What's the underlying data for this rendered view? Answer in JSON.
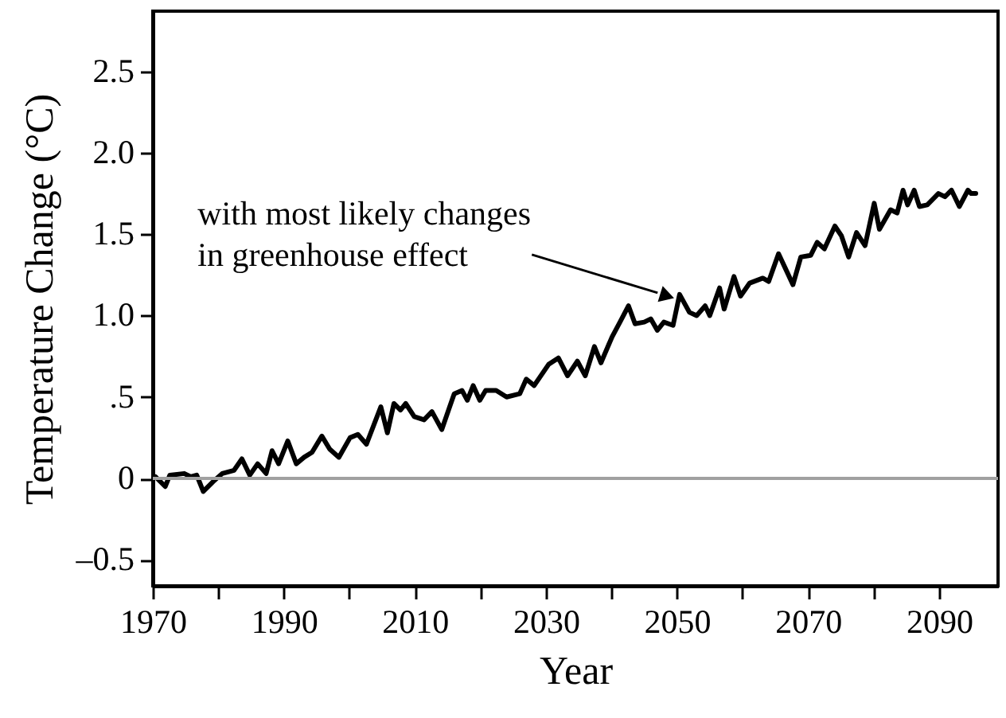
{
  "chart_data": {
    "type": "line",
    "xlabel": "Year",
    "ylabel": "Temperature Change (°C)",
    "xlim": [
      1970,
      2099
    ],
    "ylim": [
      -0.66,
      2.87
    ],
    "xticks": [
      1970,
      {
        "value": 1980,
        "label": null
      },
      1990,
      {
        "value": 2000,
        "label": null
      },
      2010,
      {
        "value": 2020,
        "label": null
      },
      2030,
      {
        "value": 2040,
        "label": null
      },
      2050,
      {
        "value": 2060,
        "label": null
      },
      2070,
      {
        "value": 2080,
        "label": null
      },
      2090
    ],
    "yticks": [
      {
        "value": -0.5,
        "label": "–0.5"
      },
      0,
      {
        "value": 0.5,
        "label": ".5"
      },
      {
        "value": 1,
        "label": "1.0"
      },
      1.5,
      {
        "value": 2,
        "label": "2.0"
      },
      2.5
    ],
    "grid": false,
    "ref_lines": [
      {
        "axis": "y",
        "value": 0,
        "color": "#a0a0a0"
      }
    ],
    "annotations": [
      {
        "text": "with most likely changes\nin greenhouse effect",
        "x": 2048.5,
        "y": 1.12
      }
    ],
    "series": [
      {
        "color": "#000000",
        "line_style": "solid",
        "x": [
          1970.4,
          1971.9,
          1972.6,
          1974.8,
          1975.8,
          1976.7,
          1977.7,
          1979.2,
          1980.6,
          1982.4,
          1983.6,
          1984.8,
          1986,
          1987.3,
          1988.2,
          1989.2,
          1990.6,
          1991.9,
          1993.1,
          1994.3,
          1995.8,
          1997,
          1998.4,
          2000.1,
          2001.3,
          2002.6,
          2004.8,
          2005.8,
          2006.8,
          2007.8,
          2008.6,
          2009.9,
          2011.4,
          2012.6,
          2014.1,
          2016,
          2017.2,
          2018,
          2018.9,
          2019.9,
          2020.8,
          2022.4,
          2024,
          2026,
          2027,
          2028.2,
          2030.4,
          2031.9,
          2033.3,
          2034.8,
          2036,
          2037.4,
          2038.4,
          2040.1,
          2041.3,
          2042.6,
          2043.6,
          2045,
          2046,
          2047,
          2048,
          2049.4,
          2050.4,
          2051.9,
          2053,
          2054.3,
          2055,
          2056.5,
          2057.2,
          2058.7,
          2059.7,
          2061.1,
          2063.1,
          2064,
          2065.5,
          2067.7,
          2068.9,
          2070.4,
          2071.4,
          2072.5,
          2074.1,
          2075.1,
          2076.2,
          2077.4,
          2078.7,
          2080.1,
          2080.9,
          2082.6,
          2083.6,
          2084.5,
          2085.2,
          2086.2,
          2087,
          2088.2,
          2089.9,
          2090.9,
          2091.9,
          2093.1,
          2094.4,
          2094.9,
          2095.6
        ],
        "values": [
          0.01,
          -0.05,
          0.02,
          0.03,
          0.01,
          0.02,
          -0.08,
          -0.02,
          0.03,
          0.05,
          0.12,
          0.02,
          0.09,
          0.03,
          0.17,
          0.09,
          0.23,
          0.09,
          0.13,
          0.16,
          0.26,
          0.18,
          0.13,
          0.25,
          0.27,
          0.21,
          0.44,
          0.28,
          0.46,
          0.42,
          0.46,
          0.38,
          0.36,
          0.41,
          0.3,
          0.52,
          0.54,
          0.48,
          0.57,
          0.48,
          0.54,
          0.54,
          0.5,
          0.52,
          0.61,
          0.57,
          0.7,
          0.74,
          0.63,
          0.72,
          0.63,
          0.81,
          0.71,
          0.87,
          0.96,
          1.06,
          0.95,
          0.96,
          0.98,
          0.91,
          0.96,
          0.94,
          1.13,
          1.02,
          1.0,
          1.06,
          1.0,
          1.17,
          1.04,
          1.24,
          1.12,
          1.2,
          1.23,
          1.21,
          1.38,
          1.19,
          1.36,
          1.37,
          1.45,
          1.41,
          1.55,
          1.49,
          1.36,
          1.51,
          1.43,
          1.69,
          1.53,
          1.65,
          1.63,
          1.77,
          1.68,
          1.77,
          1.67,
          1.68,
          1.75,
          1.73,
          1.77,
          1.67,
          1.77,
          1.75,
          1.75
        ]
      }
    ]
  }
}
